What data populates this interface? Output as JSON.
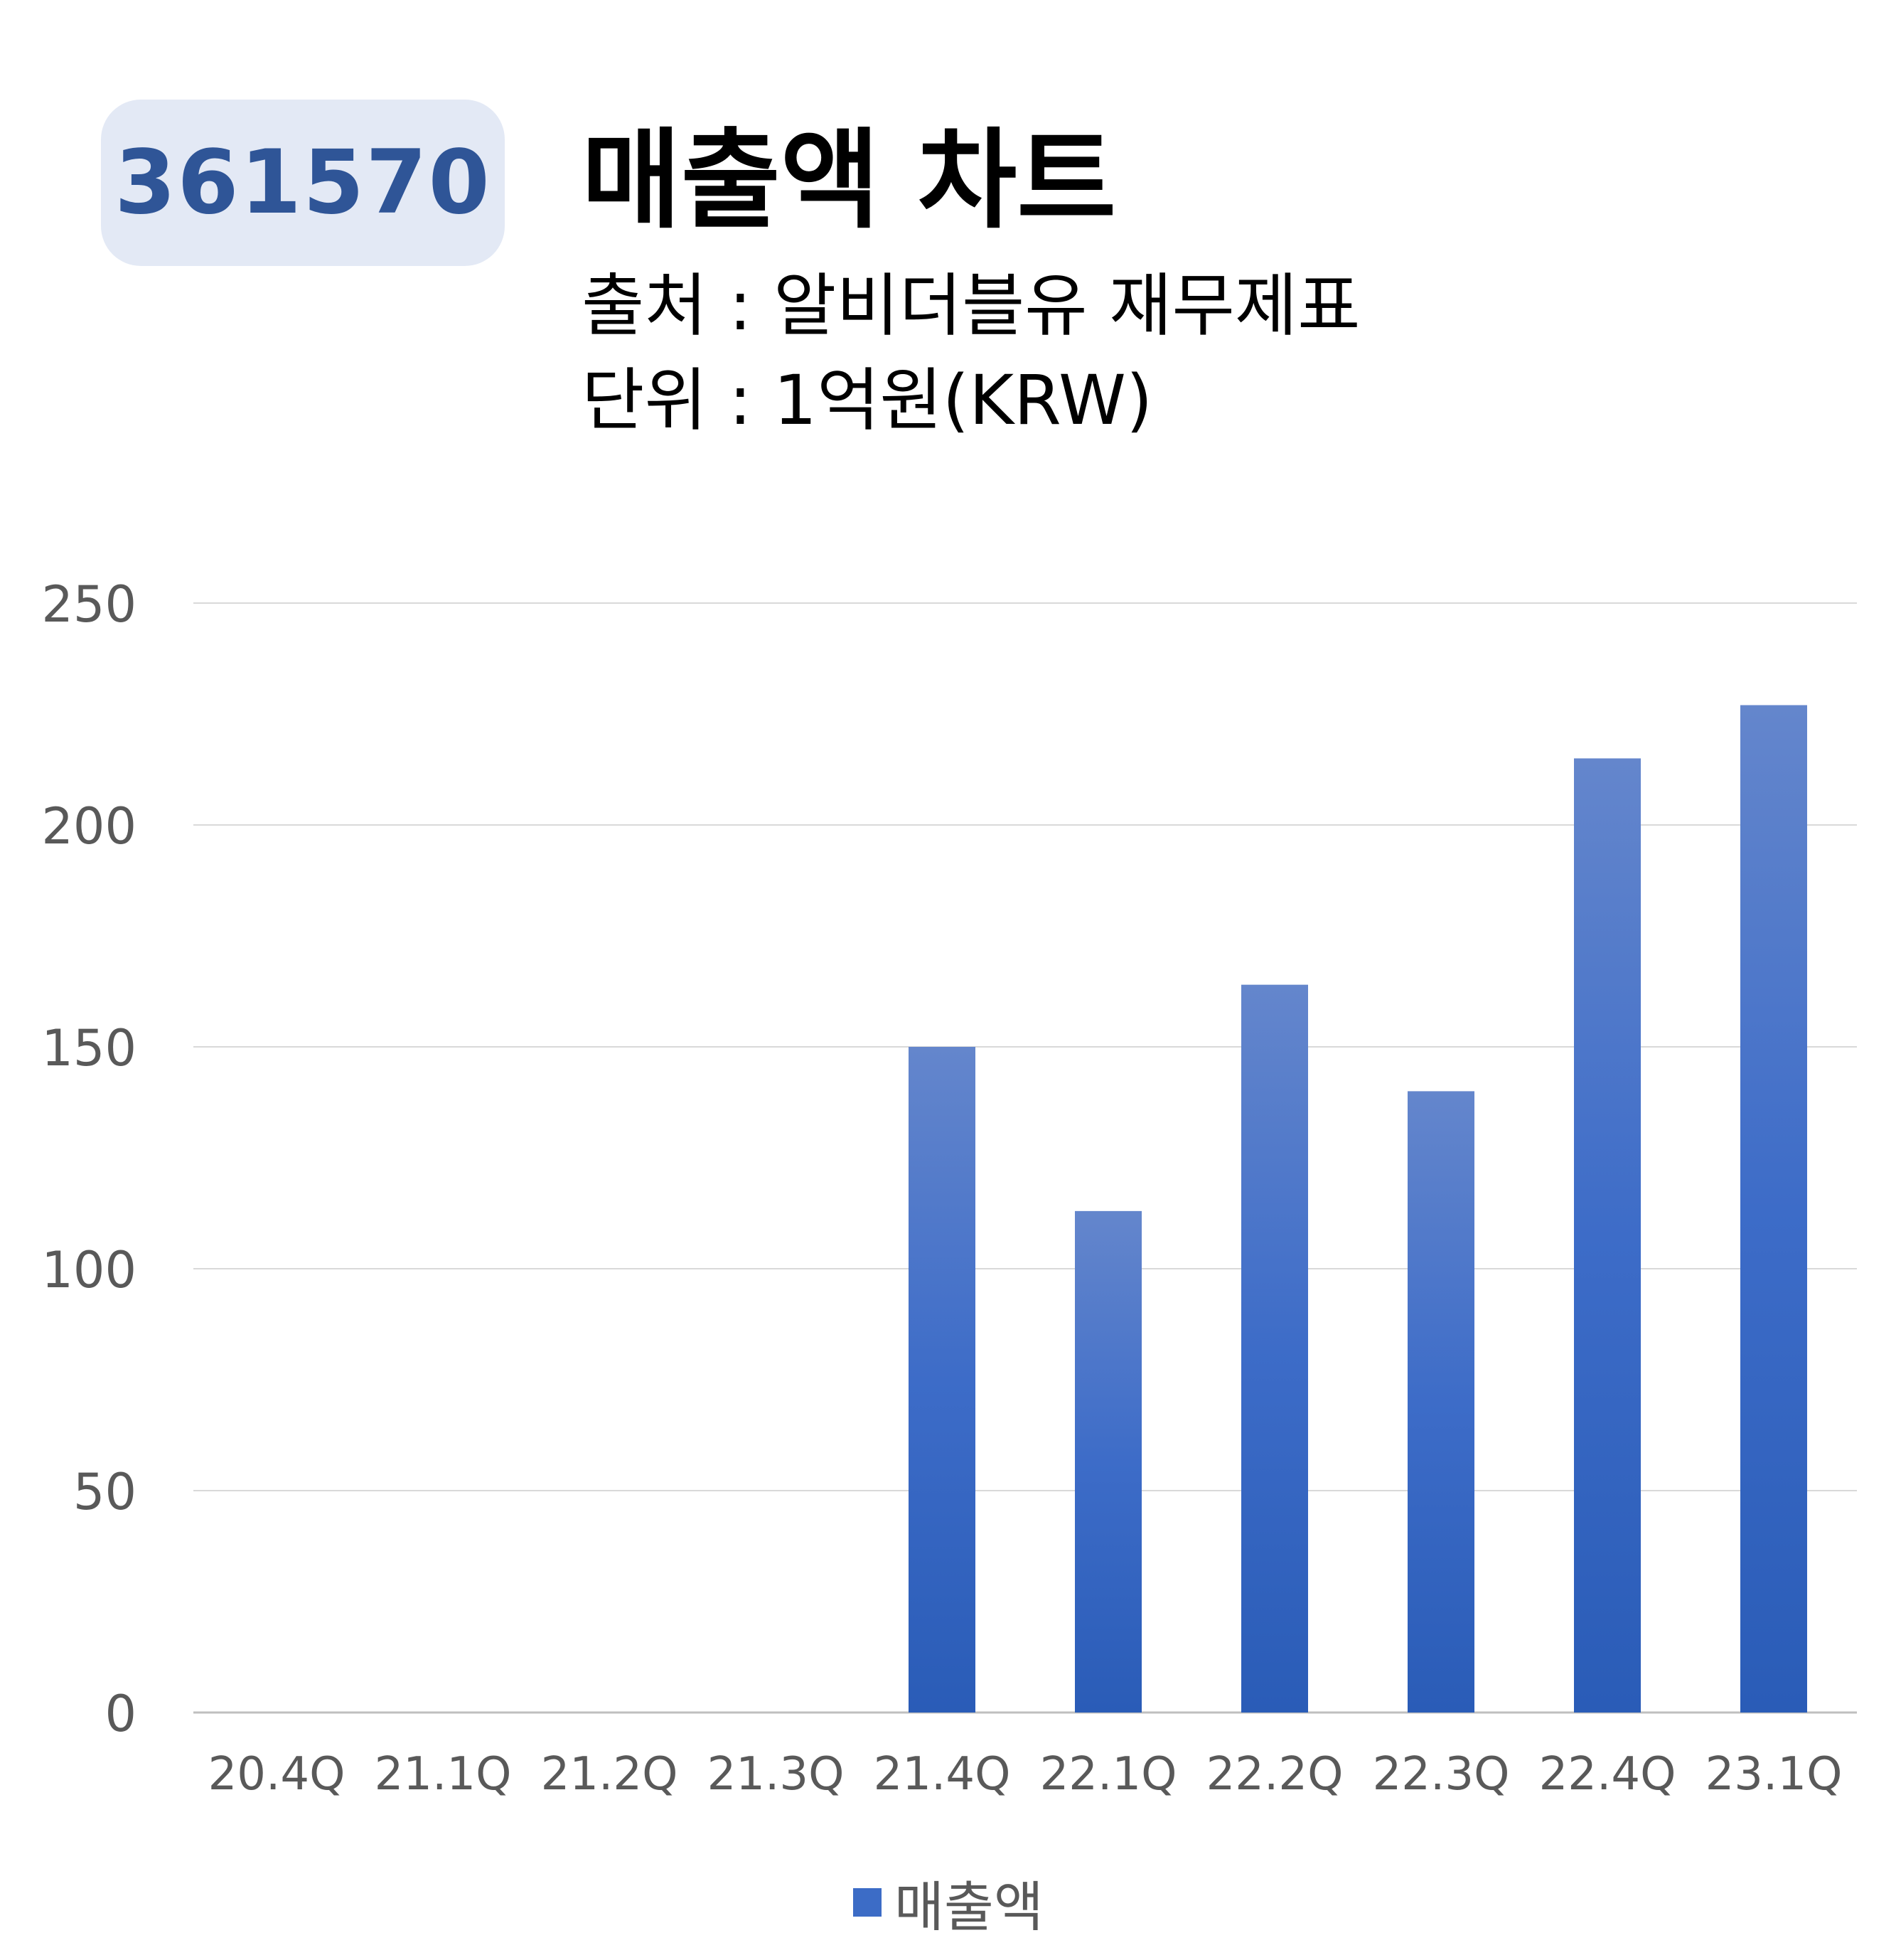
{
  "badge": "361570",
  "title": "매출액 차트",
  "source_line": "출처 : 알비더블유 재무제표",
  "unit_line": "단위 : 1억원(KRW)",
  "colors": {
    "bar_top": "#6486cc",
    "bar_bottom": "#2a5cb7",
    "badge_bg": "#e3e9f5",
    "badge_text": "#2f5597",
    "grid": "#d9d9d9",
    "tick_text": "#595959"
  },
  "chart_data": {
    "type": "bar",
    "categories": [
      "20.4Q",
      "21.1Q",
      "21.2Q",
      "21.3Q",
      "21.4Q",
      "22.1Q",
      "22.2Q",
      "22.3Q",
      "22.4Q",
      "23.1Q"
    ],
    "series": [
      {
        "name": "매출액",
        "values": [
          0,
          0,
          0,
          0,
          150,
          113,
          164,
          140,
          215,
          227
        ]
      }
    ],
    "ylim": [
      0,
      250
    ],
    "yticks": [
      0,
      50,
      100,
      150,
      200,
      250
    ],
    "grid": true,
    "legend": "bottom"
  }
}
